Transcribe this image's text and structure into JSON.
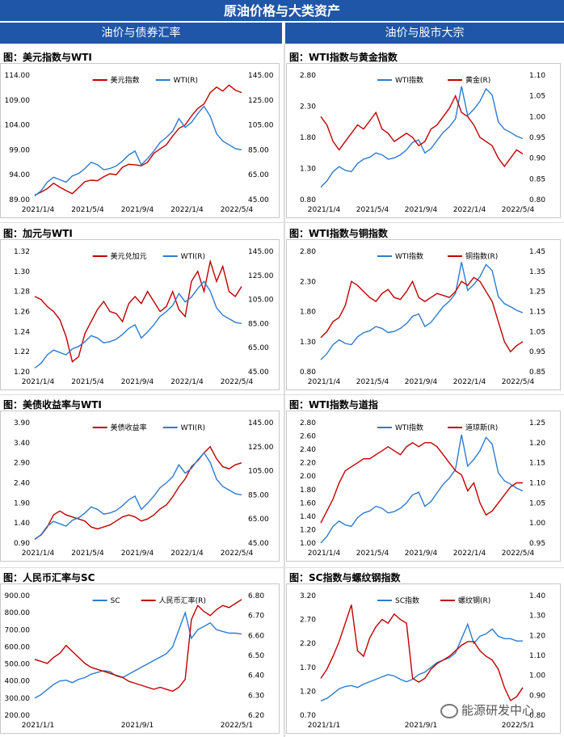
{
  "header": {
    "title": "原油价格与大类资产",
    "left_section": "油价与债券汇率",
    "right_section": "油价与股市大宗"
  },
  "watermark": "能源研发中心",
  "colors": {
    "red": "#c00000",
    "blue": "#2e7bcf",
    "header_bg": "#1f56a8"
  },
  "chart_data": [
    {
      "id": "usd-wti",
      "type": "line",
      "title": "图：美元指数与WTI",
      "x_ticks": [
        "2021/1/4",
        "2021/5/4",
        "2021/9/4",
        "2022/1/4",
        "2022/5/4"
      ],
      "y_left": {
        "ticks": [
          "114.00",
          "109.00",
          "104.00",
          "99.00",
          "94.00",
          "89.00"
        ],
        "min": 89,
        "max": 114
      },
      "y_right": {
        "ticks": [
          "145.00",
          "125.00",
          "105.00",
          "85.00",
          "65.00",
          "45.00"
        ],
        "min": 45,
        "max": 145
      },
      "legend_pos": "top-center",
      "series": [
        {
          "name": "美元指数",
          "axis": "left",
          "color": "red",
          "values": [
            89.9,
            90.5,
            91.2,
            92.3,
            91.5,
            90.8,
            90.2,
            91.4,
            92.6,
            92.9,
            92.8,
            93.6,
            94.2,
            94.0,
            95.5,
            96.1,
            96.0,
            95.8,
            96.5,
            98.3,
            99.2,
            100.0,
            101.8,
            103.3,
            104.0,
            105.8,
            107.3,
            108.2,
            110.5,
            111.6,
            110.8,
            112.0,
            111.0,
            110.5
          ]
        },
        {
          "name": "WTI(R)",
          "axis": "right",
          "color": "blue",
          "values": [
            48,
            52,
            59,
            63,
            61,
            59,
            64,
            66,
            70,
            75,
            73,
            69,
            70,
            72,
            76,
            81,
            84,
            73,
            78,
            84,
            91,
            95,
            100,
            110,
            103,
            107,
            114,
            120,
            112,
            98,
            92,
            89,
            86,
            85
          ]
        }
      ]
    },
    {
      "id": "wti-gold",
      "type": "line",
      "title": "图：WTI指数与黄金指数",
      "x_ticks": [
        "2021/1/4",
        "2021/5/4",
        "2021/9/4",
        "2022/1/4",
        "2022/5/4"
      ],
      "y_left": {
        "ticks": [
          "2.80",
          "2.30",
          "1.80",
          "1.30",
          "0.80"
        ],
        "min": 0.8,
        "max": 2.8
      },
      "y_right": {
        "ticks": [
          "1.10",
          "1.05",
          "1.00",
          "0.95",
          "0.90",
          "0.85",
          "0.80"
        ],
        "min": 0.8,
        "max": 1.1
      },
      "legend_pos": "top-center",
      "series": [
        {
          "name": "WTI指数",
          "axis": "left",
          "color": "blue",
          "values": [
            1.0,
            1.1,
            1.25,
            1.33,
            1.27,
            1.25,
            1.38,
            1.45,
            1.48,
            1.55,
            1.52,
            1.45,
            1.47,
            1.52,
            1.6,
            1.72,
            1.76,
            1.55,
            1.62,
            1.75,
            1.88,
            1.97,
            2.1,
            2.62,
            2.15,
            2.25,
            2.38,
            2.58,
            2.48,
            2.05,
            1.93,
            1.88,
            1.82,
            1.78
          ]
        },
        {
          "name": "黄金(R)",
          "axis": "right",
          "color": "red",
          "values": [
            1.0,
            0.98,
            0.94,
            0.92,
            0.94,
            0.96,
            0.98,
            0.97,
            0.99,
            1.01,
            0.97,
            0.96,
            0.94,
            0.95,
            0.96,
            0.95,
            0.93,
            0.94,
            0.97,
            0.98,
            1.0,
            1.02,
            1.05,
            1.01,
            1.0,
            0.98,
            0.95,
            0.94,
            0.93,
            0.9,
            0.88,
            0.9,
            0.92,
            0.91
          ]
        }
      ]
    },
    {
      "id": "cad-wti",
      "type": "line",
      "title": "图：加元与WTI",
      "x_ticks": [
        "2021/1/4",
        "2021/5/4",
        "2021/9/4",
        "2022/1/4",
        "2022/5/4"
      ],
      "y_left": {
        "ticks": [
          "1.32",
          "1.30",
          "1.28",
          "1.26",
          "1.24",
          "1.22",
          "1.20"
        ],
        "min": 1.2,
        "max": 1.32
      },
      "y_right": {
        "ticks": [
          "145.00",
          "125.00",
          "105.00",
          "85.00",
          "65.00",
          "45.00"
        ],
        "min": 45,
        "max": 145
      },
      "legend_pos": "top-center",
      "series": [
        {
          "name": "美元兑加元",
          "axis": "left",
          "color": "red",
          "values": [
            1.275,
            1.272,
            1.265,
            1.26,
            1.252,
            1.235,
            1.21,
            1.215,
            1.238,
            1.25,
            1.262,
            1.27,
            1.26,
            1.258,
            1.25,
            1.268,
            1.275,
            1.268,
            1.28,
            1.27,
            1.26,
            1.265,
            1.28,
            1.262,
            1.255,
            1.29,
            1.3,
            1.28,
            1.31,
            1.29,
            1.305,
            1.28,
            1.275,
            1.285
          ]
        },
        {
          "name": "WTI(R)",
          "axis": "right",
          "color": "blue",
          "values": [
            48,
            52,
            59,
            63,
            61,
            59,
            64,
            66,
            70,
            75,
            73,
            69,
            70,
            72,
            76,
            81,
            84,
            73,
            78,
            84,
            91,
            95,
            100,
            110,
            103,
            107,
            114,
            120,
            112,
            98,
            92,
            89,
            86,
            85
          ]
        }
      ]
    },
    {
      "id": "wti-copper",
      "type": "line",
      "title": "图：WTI指数与铜指数",
      "x_ticks": [
        "2021/1/4",
        "2021/5/4",
        "2021/9/4",
        "2022/1/4",
        "2022/5/4"
      ],
      "y_left": {
        "ticks": [
          "2.80",
          "2.30",
          "1.80",
          "1.30",
          "0.80"
        ],
        "min": 0.8,
        "max": 2.8
      },
      "y_right": {
        "ticks": [
          "1.45",
          "1.35",
          "1.25",
          "1.15",
          "1.05",
          "0.95",
          "0.85"
        ],
        "min": 0.85,
        "max": 1.45
      },
      "legend_pos": "top-center",
      "series": [
        {
          "name": "WTI指数",
          "axis": "left",
          "color": "blue",
          "values": [
            1.0,
            1.1,
            1.25,
            1.33,
            1.27,
            1.25,
            1.38,
            1.45,
            1.48,
            1.55,
            1.52,
            1.45,
            1.47,
            1.52,
            1.6,
            1.72,
            1.76,
            1.55,
            1.62,
            1.75,
            1.88,
            1.97,
            2.1,
            2.62,
            2.15,
            2.25,
            2.38,
            2.58,
            2.48,
            2.05,
            1.93,
            1.88,
            1.82,
            1.78
          ]
        },
        {
          "name": "铜指数(R)",
          "axis": "right",
          "color": "red",
          "values": [
            1.02,
            1.05,
            1.1,
            1.12,
            1.18,
            1.3,
            1.28,
            1.25,
            1.22,
            1.2,
            1.24,
            1.26,
            1.22,
            1.21,
            1.25,
            1.3,
            1.22,
            1.2,
            1.22,
            1.24,
            1.23,
            1.22,
            1.25,
            1.3,
            1.28,
            1.32,
            1.3,
            1.25,
            1.2,
            1.1,
            1.0,
            0.95,
            0.98,
            1.0
          ]
        }
      ]
    },
    {
      "id": "ust-wti",
      "type": "line",
      "title": "图：美债收益率与WTI",
      "x_ticks": [
        "2021/1/4",
        "2021/5/4",
        "2021/9/4",
        "2022/1/4",
        "2022/5/4"
      ],
      "y_left": {
        "ticks": [
          "3.90",
          "3.40",
          "2.90",
          "2.40",
          "1.90",
          "1.40",
          "0.90"
        ],
        "min": 0.9,
        "max": 3.9
      },
      "y_right": {
        "ticks": [
          "145.00",
          "125.00",
          "105.00",
          "85.00",
          "65.00",
          "45.00"
        ],
        "min": 45,
        "max": 145
      },
      "legend_pos": "top-center",
      "series": [
        {
          "name": "美债收益率",
          "axis": "left",
          "color": "red",
          "values": [
            1.0,
            1.1,
            1.3,
            1.6,
            1.7,
            1.6,
            1.55,
            1.5,
            1.45,
            1.3,
            1.25,
            1.3,
            1.35,
            1.45,
            1.55,
            1.6,
            1.55,
            1.45,
            1.5,
            1.6,
            1.75,
            1.85,
            2.05,
            2.3,
            2.5,
            2.8,
            2.95,
            3.15,
            3.3,
            3.0,
            2.8,
            2.75,
            2.85,
            2.9
          ]
        },
        {
          "name": "WTI(R)",
          "axis": "right",
          "color": "blue",
          "values": [
            48,
            52,
            59,
            63,
            61,
            59,
            64,
            66,
            70,
            75,
            73,
            69,
            70,
            72,
            76,
            81,
            84,
            73,
            78,
            84,
            91,
            95,
            100,
            110,
            103,
            107,
            114,
            120,
            112,
            98,
            92,
            89,
            86,
            85
          ]
        }
      ]
    },
    {
      "id": "wti-dow",
      "type": "line",
      "title": "图：WTI指数与道指",
      "x_ticks": [
        "2021/1/4",
        "2021/5/4",
        "2021/9/4",
        "2022/1/4",
        "2022/5/4"
      ],
      "y_left": {
        "ticks": [
          "2.80",
          "2.60",
          "2.40",
          "2.20",
          "2.00",
          "1.80",
          "1.60",
          "1.40",
          "1.20",
          "1.00"
        ],
        "min": 1.0,
        "max": 2.8
      },
      "y_right": {
        "ticks": [
          "1.25",
          "1.20",
          "1.15",
          "1.10",
          "1.05",
          "1.00",
          "0.95"
        ],
        "min": 0.95,
        "max": 1.25
      },
      "legend_pos": "top-center",
      "series": [
        {
          "name": "WTI指数",
          "axis": "left",
          "color": "blue",
          "values": [
            1.0,
            1.1,
            1.25,
            1.33,
            1.27,
            1.25,
            1.38,
            1.45,
            1.48,
            1.55,
            1.52,
            1.45,
            1.47,
            1.52,
            1.6,
            1.72,
            1.76,
            1.55,
            1.62,
            1.75,
            1.88,
            1.97,
            2.1,
            2.62,
            2.15,
            2.25,
            2.38,
            2.58,
            2.48,
            2.05,
            1.93,
            1.88,
            1.82,
            1.78
          ]
        },
        {
          "name": "道琼斯(R)",
          "axis": "right",
          "color": "red",
          "values": [
            1.0,
            1.03,
            1.06,
            1.1,
            1.13,
            1.14,
            1.15,
            1.16,
            1.16,
            1.17,
            1.18,
            1.19,
            1.18,
            1.17,
            1.19,
            1.2,
            1.19,
            1.2,
            1.2,
            1.19,
            1.17,
            1.15,
            1.13,
            1.12,
            1.08,
            1.1,
            1.05,
            1.02,
            1.03,
            1.05,
            1.07,
            1.09,
            1.1,
            1.1
          ]
        }
      ]
    },
    {
      "id": "cny-sc",
      "type": "line",
      "title": "图：人民币汇率与SC",
      "x_ticks": [
        "2021/1/1",
        "2021/9/1",
        "2022/5/1"
      ],
      "y_left": {
        "ticks": [
          "900.00",
          "800.00",
          "700.00",
          "600.00",
          "500.00",
          "400.00",
          "300.00",
          "200.00"
        ],
        "min": 200,
        "max": 900
      },
      "y_right": {
        "ticks": [
          "6.80",
          "6.70",
          "6.60",
          "6.50",
          "6.40",
          "6.30",
          "6.20"
        ],
        "min": 6.2,
        "max": 6.8
      },
      "legend_pos": "top-center",
      "series": [
        {
          "name": "SC",
          "axis": "left",
          "color": "blue",
          "values": [
            300,
            320,
            350,
            380,
            400,
            405,
            390,
            410,
            420,
            440,
            450,
            460,
            455,
            430,
            420,
            440,
            460,
            480,
            500,
            520,
            540,
            560,
            600,
            700,
            800,
            650,
            700,
            720,
            740,
            700,
            690,
            680,
            680,
            675
          ]
        },
        {
          "name": "人民币汇率(R)",
          "axis": "right",
          "color": "red",
          "values": [
            6.48,
            6.47,
            6.46,
            6.49,
            6.51,
            6.55,
            6.52,
            6.49,
            6.46,
            6.44,
            6.43,
            6.42,
            6.41,
            6.4,
            6.39,
            6.37,
            6.36,
            6.35,
            6.34,
            6.33,
            6.34,
            6.33,
            6.32,
            6.34,
            6.38,
            6.68,
            6.75,
            6.72,
            6.7,
            6.73,
            6.75,
            6.74,
            6.76,
            6.78
          ]
        }
      ]
    },
    {
      "id": "sc-rebar",
      "type": "line",
      "title": "图：SC指数与螺纹钢指数",
      "x_ticks": [
        "2021/1/1",
        "2021/9/1",
        "2022/5/1"
      ],
      "y_left": {
        "ticks": [
          "3.20",
          "2.70",
          "2.20",
          "1.70",
          "1.20",
          "0.70"
        ],
        "min": 0.7,
        "max": 3.2
      },
      "y_right": {
        "ticks": [
          "1.40",
          "1.30",
          "1.20",
          "1.10",
          "1.00",
          "0.90",
          "0.80"
        ],
        "min": 0.8,
        "max": 1.45
      },
      "legend_pos": "top-center",
      "series": [
        {
          "name": "SC指数",
          "axis": "left",
          "color": "blue",
          "values": [
            1.0,
            1.05,
            1.15,
            1.25,
            1.3,
            1.32,
            1.28,
            1.35,
            1.4,
            1.45,
            1.5,
            1.55,
            1.52,
            1.45,
            1.4,
            1.45,
            1.55,
            1.6,
            1.7,
            1.8,
            1.85,
            1.9,
            2.0,
            2.3,
            2.6,
            2.2,
            2.35,
            2.4,
            2.5,
            2.35,
            2.3,
            2.3,
            2.25,
            2.25
          ]
        },
        {
          "name": "螺纹钢(R)",
          "axis": "right",
          "color": "red",
          "values": [
            1.0,
            1.05,
            1.12,
            1.2,
            1.3,
            1.4,
            1.15,
            1.12,
            1.22,
            1.28,
            1.32,
            1.3,
            1.35,
            1.32,
            1.3,
            1.0,
            0.98,
            1.0,
            1.05,
            1.08,
            1.1,
            1.12,
            1.15,
            1.18,
            1.2,
            1.2,
            1.15,
            1.12,
            1.1,
            1.05,
            0.95,
            0.88,
            0.9,
            0.95
          ]
        }
      ]
    }
  ]
}
